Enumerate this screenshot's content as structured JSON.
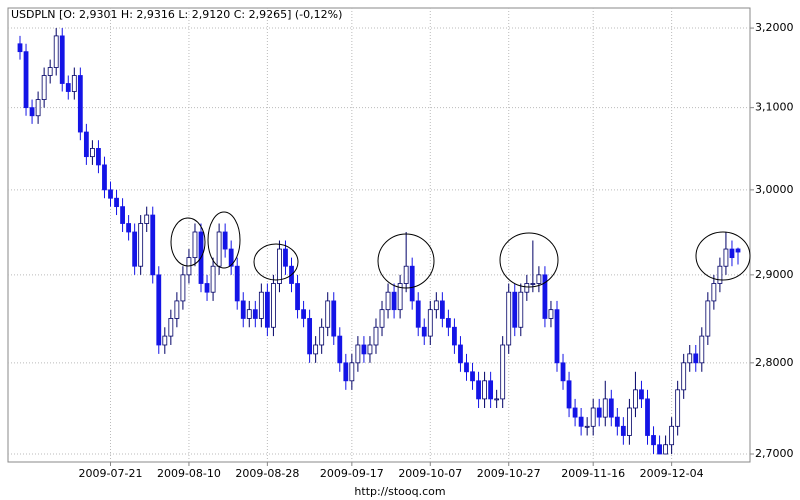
{
  "chart_data": {
    "type": "candlestick",
    "title": "USDPLN [O: 2,9301  H: 2,9316  L: 2,9120  C: 2,9265] (-0,12%)",
    "footer": "http://stooq.com",
    "log_scale": true,
    "grid": true,
    "up_color": "#ffffff",
    "down_color": "#1414e6",
    "outline_color": "#000066",
    "ylim": [
      2.6914,
      3.2257
    ],
    "yticks": [
      {
        "value": 2.7,
        "label": "2,7000"
      },
      {
        "value": 2.8,
        "label": "2,8000"
      },
      {
        "value": 2.9,
        "label": "2,9000"
      },
      {
        "value": 3.0,
        "label": "3,0000"
      },
      {
        "value": 3.1,
        "label": "3,1000"
      },
      {
        "value": 3.2,
        "label": "3,2000"
      }
    ],
    "categories": [
      null,
      null,
      null,
      null,
      null,
      null,
      null,
      null,
      null,
      null,
      null,
      null,
      null,
      null,
      null,
      "2009-07-21",
      null,
      null,
      null,
      null,
      null,
      null,
      null,
      null,
      null,
      null,
      null,
      null,
      "2009-08-10",
      null,
      null,
      null,
      null,
      null,
      null,
      null,
      null,
      null,
      null,
      null,
      null,
      "2009-08-28",
      null,
      null,
      null,
      null,
      null,
      null,
      null,
      null,
      null,
      null,
      null,
      null,
      null,
      "2009-09-17",
      null,
      null,
      null,
      null,
      null,
      null,
      null,
      null,
      null,
      null,
      null,
      null,
      "2009-10-07",
      null,
      null,
      null,
      null,
      null,
      null,
      null,
      null,
      null,
      null,
      null,
      null,
      "2009-10-27",
      null,
      null,
      null,
      null,
      null,
      null,
      null,
      null,
      null,
      null,
      null,
      null,
      null,
      "2009-11-16",
      null,
      null,
      null,
      null,
      null,
      null,
      null,
      null,
      null,
      null,
      null,
      null,
      "2009-12-04",
      null,
      null,
      null,
      null,
      null,
      null,
      null,
      null,
      null,
      null,
      null
    ],
    "open": [
      3.18,
      3.17,
      3.1,
      3.09,
      3.11,
      3.14,
      3.15,
      3.19,
      3.13,
      3.12,
      3.14,
      3.07,
      3.04,
      3.05,
      3.03,
      3.0,
      2.99,
      2.98,
      2.96,
      2.95,
      2.91,
      2.96,
      2.97,
      2.9,
      2.82,
      2.83,
      2.85,
      2.87,
      2.9,
      2.92,
      2.95,
      2.89,
      2.88,
      2.91,
      2.95,
      2.93,
      2.91,
      2.87,
      2.85,
      2.86,
      2.85,
      2.88,
      2.84,
      2.89,
      2.93,
      2.91,
      2.89,
      2.86,
      2.85,
      2.81,
      2.82,
      2.84,
      2.87,
      2.83,
      2.8,
      2.78,
      2.8,
      2.82,
      2.81,
      2.82,
      2.84,
      2.86,
      2.88,
      2.86,
      2.89,
      2.91,
      2.87,
      2.84,
      2.83,
      2.86,
      2.87,
      2.85,
      2.84,
      2.82,
      2.8,
      2.79,
      2.78,
      2.76,
      2.78,
      2.76,
      2.76,
      2.82,
      2.88,
      2.84,
      2.88,
      2.89,
      2.89,
      2.9,
      2.85,
      2.86,
      2.8,
      2.78,
      2.75,
      2.74,
      2.73,
      2.73,
      2.75,
      2.74,
      2.76,
      2.74,
      2.73,
      2.72,
      2.75,
      2.77,
      2.76,
      2.72,
      2.71,
      2.7,
      2.71,
      2.73,
      2.77,
      2.8,
      2.81,
      2.8,
      2.83,
      2.87,
      2.89,
      2.91,
      2.93,
      2.9301
    ],
    "high": [
      3.19,
      3.18,
      3.11,
      3.12,
      3.15,
      3.16,
      3.2,
      3.2,
      3.14,
      3.15,
      3.15,
      3.08,
      3.06,
      3.06,
      3.04,
      3.01,
      3.0,
      2.99,
      2.97,
      2.96,
      2.97,
      2.98,
      2.98,
      2.91,
      2.84,
      2.86,
      2.88,
      2.91,
      2.93,
      2.96,
      2.96,
      2.9,
      2.92,
      2.96,
      2.96,
      2.94,
      2.92,
      2.88,
      2.87,
      2.87,
      2.89,
      2.89,
      2.9,
      2.94,
      2.94,
      2.92,
      2.9,
      2.87,
      2.86,
      2.83,
      2.85,
      2.88,
      2.88,
      2.84,
      2.81,
      2.81,
      2.83,
      2.83,
      2.83,
      2.85,
      2.87,
      2.89,
      2.89,
      2.9,
      2.95,
      2.92,
      2.88,
      2.85,
      2.87,
      2.88,
      2.88,
      2.86,
      2.85,
      2.83,
      2.81,
      2.8,
      2.79,
      2.79,
      2.79,
      2.77,
      2.83,
      2.89,
      2.89,
      2.89,
      2.9,
      2.94,
      2.91,
      2.91,
      2.87,
      2.87,
      2.81,
      2.79,
      2.76,
      2.75,
      2.74,
      2.76,
      2.76,
      2.78,
      2.77,
      2.75,
      2.74,
      2.76,
      2.79,
      2.78,
      2.77,
      2.73,
      2.72,
      2.72,
      2.74,
      2.78,
      2.81,
      2.82,
      2.82,
      2.84,
      2.88,
      2.9,
      2.92,
      2.95,
      2.94,
      2.9316
    ],
    "low": [
      3.16,
      3.09,
      3.08,
      3.08,
      3.1,
      3.13,
      3.14,
      3.12,
      3.11,
      3.11,
      3.06,
      3.03,
      3.03,
      3.02,
      2.99,
      2.98,
      2.97,
      2.95,
      2.94,
      2.9,
      2.9,
      2.95,
      2.89,
      2.81,
      2.81,
      2.82,
      2.84,
      2.86,
      2.89,
      2.91,
      2.88,
      2.87,
      2.87,
      2.9,
      2.92,
      2.9,
      2.86,
      2.84,
      2.84,
      2.84,
      2.84,
      2.83,
      2.83,
      2.88,
      2.9,
      2.88,
      2.85,
      2.84,
      2.8,
      2.8,
      2.81,
      2.83,
      2.82,
      2.79,
      2.77,
      2.77,
      2.79,
      2.8,
      2.8,
      2.81,
      2.83,
      2.85,
      2.85,
      2.85,
      2.88,
      2.86,
      2.83,
      2.82,
      2.82,
      2.85,
      2.84,
      2.83,
      2.81,
      2.79,
      2.78,
      2.77,
      2.75,
      2.75,
      2.75,
      2.75,
      2.75,
      2.81,
      2.83,
      2.83,
      2.87,
      2.88,
      2.88,
      2.84,
      2.84,
      2.79,
      2.77,
      2.74,
      2.73,
      2.72,
      2.72,
      2.72,
      2.73,
      2.73,
      2.73,
      2.72,
      2.71,
      2.71,
      2.74,
      2.75,
      2.71,
      2.7,
      2.7,
      2.7,
      2.7,
      2.72,
      2.76,
      2.79,
      2.79,
      2.79,
      2.82,
      2.86,
      2.88,
      2.9,
      2.91,
      2.912
    ],
    "close": [
      3.17,
      3.1,
      3.09,
      3.11,
      3.14,
      3.15,
      3.19,
      3.13,
      3.12,
      3.14,
      3.07,
      3.04,
      3.05,
      3.03,
      3.0,
      2.99,
      2.98,
      2.96,
      2.95,
      2.91,
      2.96,
      2.97,
      2.9,
      2.82,
      2.83,
      2.85,
      2.87,
      2.9,
      2.92,
      2.95,
      2.89,
      2.88,
      2.91,
      2.95,
      2.93,
      2.91,
      2.87,
      2.85,
      2.86,
      2.85,
      2.88,
      2.84,
      2.89,
      2.93,
      2.91,
      2.89,
      2.86,
      2.85,
      2.81,
      2.82,
      2.84,
      2.87,
      2.83,
      2.8,
      2.78,
      2.8,
      2.82,
      2.81,
      2.82,
      2.84,
      2.86,
      2.88,
      2.86,
      2.89,
      2.91,
      2.87,
      2.84,
      2.83,
      2.86,
      2.87,
      2.85,
      2.84,
      2.82,
      2.8,
      2.79,
      2.78,
      2.76,
      2.78,
      2.76,
      2.76,
      2.82,
      2.88,
      2.84,
      2.88,
      2.89,
      2.89,
      2.9,
      2.85,
      2.86,
      2.8,
      2.78,
      2.75,
      2.74,
      2.73,
      2.73,
      2.75,
      2.74,
      2.76,
      2.74,
      2.73,
      2.72,
      2.75,
      2.77,
      2.76,
      2.72,
      2.71,
      2.7,
      2.71,
      2.73,
      2.77,
      2.8,
      2.81,
      2.8,
      2.83,
      2.87,
      2.89,
      2.91,
      2.93,
      2.92,
      2.9265
    ]
  }
}
